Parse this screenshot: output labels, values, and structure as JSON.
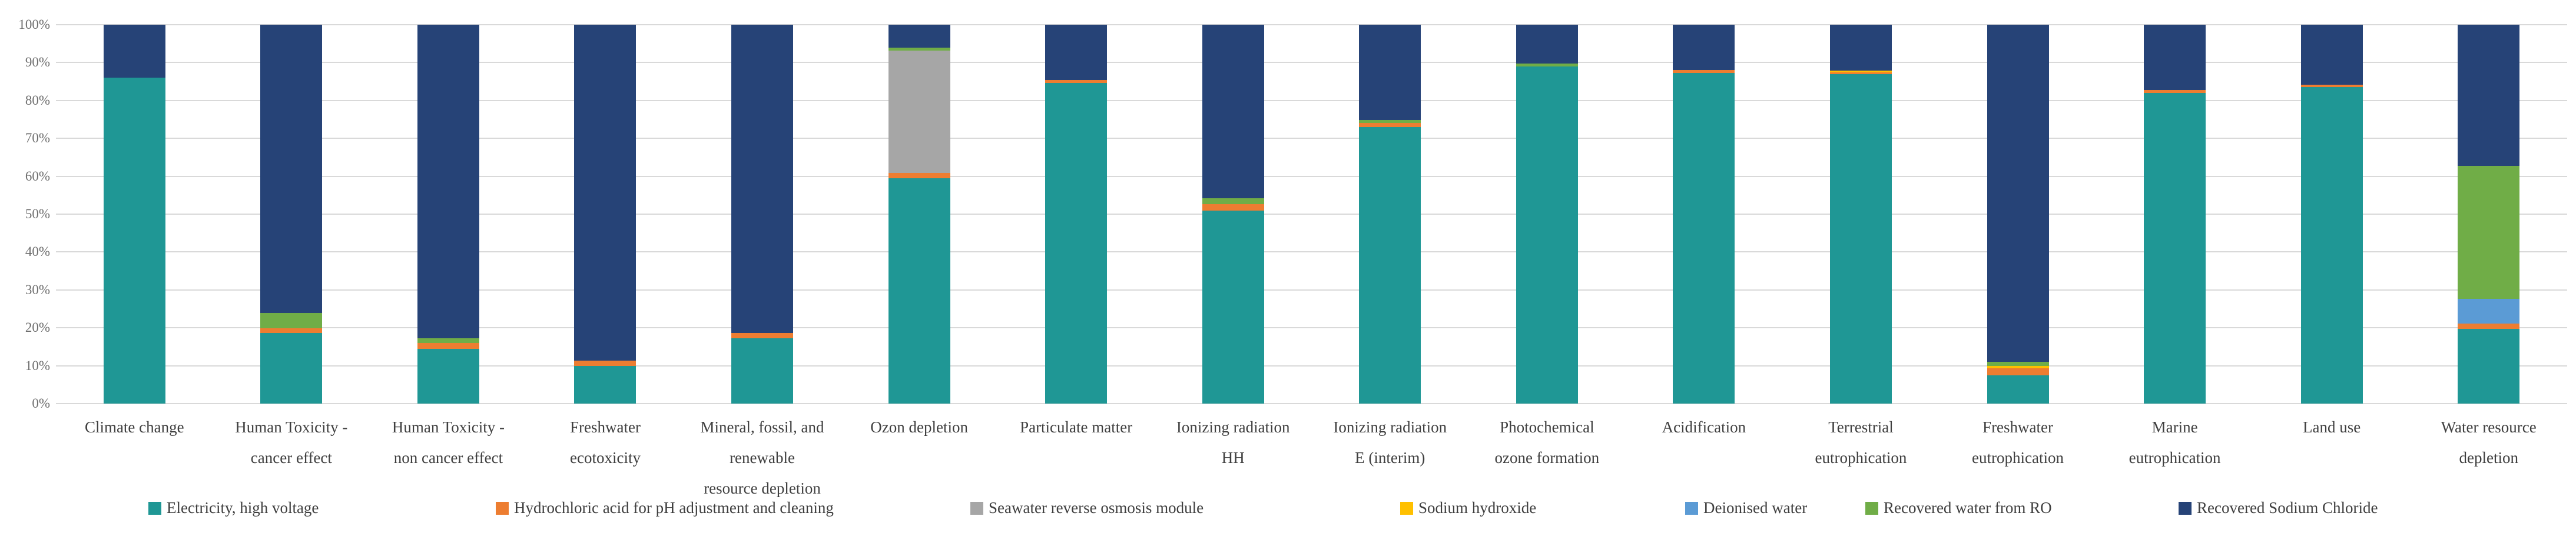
{
  "chart_data": {
    "type": "bar",
    "subtype": "stacked-100-percent",
    "title": "",
    "xlabel": "",
    "ylabel": "",
    "ylim": [
      0,
      100
    ],
    "grid": "horizontal",
    "legend_position": "bottom",
    "y_ticks": [
      "0%",
      "10%",
      "20%",
      "30%",
      "40%",
      "50%",
      "60%",
      "70%",
      "80%",
      "90%",
      "100%"
    ],
    "categories": [
      {
        "label": "Climate change",
        "lines": [
          "Climate change"
        ]
      },
      {
        "label": "Human Toxicity - cancer effect",
        "lines": [
          "Human Toxicity -",
          "cancer effect"
        ]
      },
      {
        "label": "Human Toxicity - non cancer effect",
        "lines": [
          "Human Toxicity -",
          "non cancer effect"
        ]
      },
      {
        "label": "Freshwater ecotoxicity",
        "lines": [
          "Freshwater",
          "ecotoxicity"
        ]
      },
      {
        "label": "Mineral, fossil, and renewable resource depletion",
        "lines": [
          "Mineral, fossil, and",
          "renewable",
          "resource depletion"
        ]
      },
      {
        "label": "Ozon depletion",
        "lines": [
          "Ozon depletion"
        ]
      },
      {
        "label": "Particulate matter",
        "lines": [
          "Particulate matter"
        ]
      },
      {
        "label": "Ionizing radiation HH",
        "lines": [
          "Ionizing radiation",
          "HH"
        ]
      },
      {
        "label": "Ionizing radiation E (interim)",
        "lines": [
          "Ionizing radiation",
          "E (interim)"
        ]
      },
      {
        "label": "Photochemical ozone formation",
        "lines": [
          "Photochemical",
          "ozone formation"
        ]
      },
      {
        "label": "Acidification",
        "lines": [
          "Acidification"
        ]
      },
      {
        "label": "Terrestrial eutrophication",
        "lines": [
          "Terrestrial",
          "eutrophication"
        ]
      },
      {
        "label": "Freshwater eutrophication",
        "lines": [
          "Freshwater",
          "eutrophication"
        ]
      },
      {
        "label": "Marine eutrophication",
        "lines": [
          "Marine",
          "eutrophication"
        ]
      },
      {
        "label": "Land use",
        "lines": [
          "Land use"
        ]
      },
      {
        "label": "Water resource depletion",
        "lines": [
          "Water resource",
          "depletion"
        ]
      }
    ],
    "series": [
      {
        "name": "Electricity, high voltage",
        "color": "#1F9795",
        "values": [
          86,
          18.7,
          14.5,
          10,
          17.2,
          59.5,
          84.6,
          51,
          73,
          89,
          87.2,
          87,
          7.5,
          82,
          83.5,
          19.8
        ]
      },
      {
        "name": "Hydrochloric acid for pH adjustment and cleaning",
        "color": "#ED7D31",
        "values": [
          0,
          1.2,
          1.5,
          1.3,
          1.5,
          1.3,
          0.8,
          1.6,
          1.0,
          0,
          0.8,
          0.4,
          1.8,
          0.7,
          0.7,
          1.3
        ]
      },
      {
        "name": "Seawater reverse osmosis module",
        "color": "#A6A6A6",
        "values": [
          0,
          0,
          0,
          0,
          0,
          32.4,
          0,
          0,
          0,
          0,
          0,
          0,
          0,
          0,
          0,
          0
        ]
      },
      {
        "name": "Sodium hydroxide",
        "color": "#FFC000",
        "values": [
          0,
          0,
          0,
          0,
          0,
          0,
          0,
          0,
          0,
          0,
          0,
          0.5,
          0.6,
          0,
          0,
          0
        ]
      },
      {
        "name": "Deionised water",
        "color": "#5B9BD5",
        "values": [
          0,
          0,
          0,
          0,
          0,
          0,
          0,
          0,
          0,
          0,
          0,
          0,
          0,
          0,
          0,
          6.6
        ]
      },
      {
        "name": "Recovered water from RO",
        "color": "#70AD47",
        "values": [
          0,
          4,
          1.2,
          0,
          0,
          0.7,
          0,
          1.6,
          0.9,
          0.8,
          0,
          0,
          1.2,
          0,
          0,
          35.1
        ]
      },
      {
        "name": "Recovered Sodium Chloride",
        "color": "#264377",
        "values": [
          14,
          76.1,
          82.8,
          88.7,
          81.3,
          6.1,
          14.6,
          45.8,
          25.1,
          10.2,
          12,
          12.1,
          88.9,
          17.3,
          15.8,
          37.2
        ]
      }
    ],
    "colors": {
      "gridline": "#D9D9D9",
      "tick_text": "#6F6F6F",
      "label_text": "#3F3F3F",
      "background": "#FFFFFF"
    }
  }
}
